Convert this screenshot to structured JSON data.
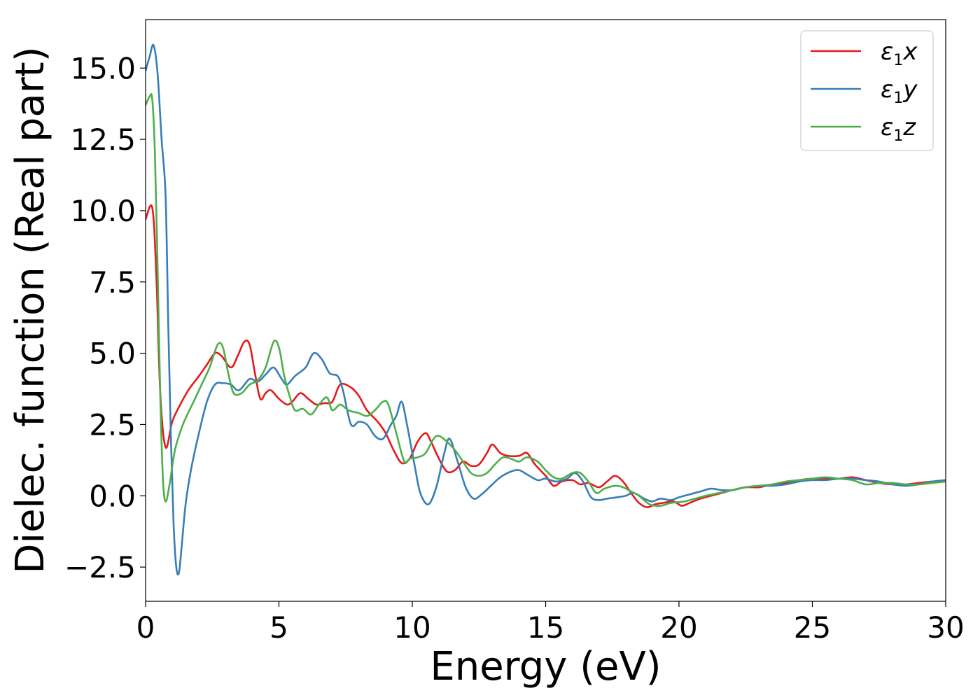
{
  "chart_data": {
    "type": "line",
    "title": "",
    "xlabel": "Energy (eV)",
    "ylabel": "Dielec. function (Real part)",
    "xlim": [
      0,
      30
    ],
    "ylim": [
      -3.7,
      16.7
    ],
    "xticks": [
      0,
      5,
      10,
      15,
      20,
      25,
      30
    ],
    "xtick_labels": [
      "0",
      "5",
      "10",
      "15",
      "20",
      "25",
      "30"
    ],
    "yticks": [
      -2.5,
      0.0,
      2.5,
      5.0,
      7.5,
      10.0,
      12.5,
      15.0
    ],
    "ytick_labels": [
      "−2.5",
      "0.0",
      "2.5",
      "5.0",
      "7.5",
      "10.0",
      "12.5",
      "15.0"
    ],
    "grid": false,
    "legend_position": "top-right",
    "series": [
      {
        "name": "ε1x",
        "legend_symbol": "ε",
        "legend_sub": "1",
        "legend_var": "x",
        "color": "#e41a1c",
        "points": [
          [
            0,
            9.7
          ],
          [
            0.25,
            10.1
          ],
          [
            0.4,
            7.8
          ],
          [
            0.55,
            3.6
          ],
          [
            0.75,
            1.7
          ],
          [
            1.0,
            2.6
          ],
          [
            1.3,
            3.2
          ],
          [
            1.6,
            3.7
          ],
          [
            2.0,
            4.2
          ],
          [
            2.3,
            4.6
          ],
          [
            2.6,
            5.0
          ],
          [
            2.85,
            4.9
          ],
          [
            3.2,
            4.5
          ],
          [
            3.45,
            4.9
          ],
          [
            3.7,
            5.4
          ],
          [
            3.9,
            5.3
          ],
          [
            4.1,
            4.3
          ],
          [
            4.3,
            3.4
          ],
          [
            4.5,
            3.6
          ],
          [
            4.7,
            3.7
          ],
          [
            5.0,
            3.4
          ],
          [
            5.3,
            3.2
          ],
          [
            5.5,
            3.3
          ],
          [
            5.8,
            3.6
          ],
          [
            6.1,
            3.4
          ],
          [
            6.4,
            3.2
          ],
          [
            6.7,
            3.25
          ],
          [
            7.0,
            3.3
          ],
          [
            7.3,
            3.9
          ],
          [
            7.7,
            3.8
          ],
          [
            8.0,
            3.5
          ],
          [
            8.3,
            3.0
          ],
          [
            8.7,
            2.6
          ],
          [
            9.0,
            2.2
          ],
          [
            9.3,
            1.6
          ],
          [
            9.6,
            1.15
          ],
          [
            9.9,
            1.3
          ],
          [
            10.2,
            1.9
          ],
          [
            10.5,
            2.2
          ],
          [
            10.7,
            1.9
          ],
          [
            11.0,
            1.3
          ],
          [
            11.3,
            0.85
          ],
          [
            11.6,
            0.9
          ],
          [
            11.9,
            1.2
          ],
          [
            12.2,
            1.05
          ],
          [
            12.5,
            1.1
          ],
          [
            12.8,
            1.5
          ],
          [
            13.0,
            1.8
          ],
          [
            13.3,
            1.5
          ],
          [
            13.6,
            1.4
          ],
          [
            14.0,
            1.4
          ],
          [
            14.3,
            1.5
          ],
          [
            14.6,
            1.1
          ],
          [
            15.0,
            0.7
          ],
          [
            15.3,
            0.35
          ],
          [
            15.6,
            0.5
          ],
          [
            16.0,
            0.55
          ],
          [
            16.3,
            0.4
          ],
          [
            16.6,
            0.45
          ],
          [
            17.0,
            0.3
          ],
          [
            17.3,
            0.5
          ],
          [
            17.6,
            0.7
          ],
          [
            17.9,
            0.5
          ],
          [
            18.2,
            0.1
          ],
          [
            18.5,
            -0.25
          ],
          [
            18.8,
            -0.4
          ],
          [
            19.1,
            -0.3
          ],
          [
            19.4,
            -0.25
          ],
          [
            19.8,
            -0.2
          ],
          [
            20.1,
            -0.35
          ],
          [
            20.4,
            -0.25
          ],
          [
            20.8,
            -0.1
          ],
          [
            21.2,
            0.0
          ],
          [
            21.6,
            0.1
          ],
          [
            22.0,
            0.2
          ],
          [
            22.5,
            0.3
          ],
          [
            23.0,
            0.3
          ],
          [
            23.5,
            0.4
          ],
          [
            24.0,
            0.45
          ],
          [
            24.5,
            0.55
          ],
          [
            25.0,
            0.6
          ],
          [
            25.5,
            0.6
          ],
          [
            26.0,
            0.6
          ],
          [
            26.5,
            0.65
          ],
          [
            27.0,
            0.55
          ],
          [
            27.5,
            0.45
          ],
          [
            28.0,
            0.4
          ],
          [
            28.5,
            0.4
          ],
          [
            29.0,
            0.45
          ],
          [
            29.5,
            0.5
          ],
          [
            30.0,
            0.5
          ]
        ]
      },
      {
        "name": "ε1y",
        "legend_symbol": "ε",
        "legend_sub": "1",
        "legend_var": "y",
        "color": "#377eb8",
        "points": [
          [
            0,
            14.9
          ],
          [
            0.15,
            15.4
          ],
          [
            0.3,
            15.8
          ],
          [
            0.45,
            14.8
          ],
          [
            0.6,
            12.5
          ],
          [
            0.75,
            10.5
          ],
          [
            0.85,
            6.0
          ],
          [
            0.95,
            2.0
          ],
          [
            1.05,
            -1.0
          ],
          [
            1.15,
            -2.5
          ],
          [
            1.25,
            -2.7
          ],
          [
            1.35,
            -1.8
          ],
          [
            1.5,
            -0.3
          ],
          [
            1.7,
            0.9
          ],
          [
            2.0,
            2.2
          ],
          [
            2.3,
            3.3
          ],
          [
            2.6,
            3.9
          ],
          [
            2.9,
            3.95
          ],
          [
            3.2,
            3.9
          ],
          [
            3.5,
            3.7
          ],
          [
            3.9,
            4.1
          ],
          [
            4.2,
            4.0
          ],
          [
            4.5,
            4.25
          ],
          [
            4.8,
            4.5
          ],
          [
            5.1,
            4.1
          ],
          [
            5.3,
            3.9
          ],
          [
            5.6,
            4.2
          ],
          [
            6.0,
            4.5
          ],
          [
            6.3,
            5.0
          ],
          [
            6.6,
            4.8
          ],
          [
            6.9,
            4.3
          ],
          [
            7.2,
            4.2
          ],
          [
            7.4,
            3.7
          ],
          [
            7.7,
            2.5
          ],
          [
            8.0,
            2.6
          ],
          [
            8.3,
            2.5
          ],
          [
            8.6,
            2.1
          ],
          [
            8.9,
            2.0
          ],
          [
            9.2,
            2.5
          ],
          [
            9.4,
            2.8
          ],
          [
            9.6,
            3.3
          ],
          [
            9.8,
            2.5
          ],
          [
            10.1,
            1.0
          ],
          [
            10.3,
            0.1
          ],
          [
            10.6,
            -0.3
          ],
          [
            10.9,
            0.3
          ],
          [
            11.2,
            1.5
          ],
          [
            11.4,
            2.0
          ],
          [
            11.7,
            1.2
          ],
          [
            12.0,
            0.3
          ],
          [
            12.3,
            -0.1
          ],
          [
            12.6,
            0.05
          ],
          [
            13.0,
            0.4
          ],
          [
            13.3,
            0.65
          ],
          [
            13.7,
            0.85
          ],
          [
            14.0,
            0.9
          ],
          [
            14.3,
            0.75
          ],
          [
            14.7,
            0.55
          ],
          [
            15.0,
            0.6
          ],
          [
            15.4,
            0.5
          ],
          [
            15.8,
            0.6
          ],
          [
            16.1,
            0.8
          ],
          [
            16.4,
            0.5
          ],
          [
            16.7,
            -0.05
          ],
          [
            17.0,
            -0.15
          ],
          [
            17.3,
            -0.1
          ],
          [
            17.7,
            -0.05
          ],
          [
            18.0,
            0.0
          ],
          [
            18.3,
            0.1
          ],
          [
            18.7,
            -0.1
          ],
          [
            19.0,
            -0.2
          ],
          [
            19.3,
            -0.1
          ],
          [
            19.7,
            -0.15
          ],
          [
            20.0,
            -0.05
          ],
          [
            20.4,
            0.05
          ],
          [
            20.8,
            0.15
          ],
          [
            21.2,
            0.25
          ],
          [
            21.6,
            0.2
          ],
          [
            22.0,
            0.2
          ],
          [
            22.5,
            0.3
          ],
          [
            23.0,
            0.35
          ],
          [
            23.5,
            0.35
          ],
          [
            24.0,
            0.4
          ],
          [
            24.5,
            0.5
          ],
          [
            25.0,
            0.55
          ],
          [
            25.5,
            0.55
          ],
          [
            26.0,
            0.6
          ],
          [
            26.5,
            0.6
          ],
          [
            27.0,
            0.55
          ],
          [
            27.5,
            0.5
          ],
          [
            28.0,
            0.4
          ],
          [
            28.5,
            0.35
          ],
          [
            29.0,
            0.4
          ],
          [
            29.5,
            0.5
          ],
          [
            30.0,
            0.55
          ]
        ]
      },
      {
        "name": "ε1z",
        "legend_symbol": "ε",
        "legend_sub": "1",
        "legend_var": "z",
        "color": "#4daf4a",
        "points": [
          [
            0,
            13.7
          ],
          [
            0.15,
            14.0
          ],
          [
            0.25,
            13.9
          ],
          [
            0.35,
            12.0
          ],
          [
            0.45,
            8.0
          ],
          [
            0.55,
            3.5
          ],
          [
            0.65,
            0.6
          ],
          [
            0.75,
            -0.2
          ],
          [
            0.9,
            0.4
          ],
          [
            1.1,
            1.6
          ],
          [
            1.4,
            2.5
          ],
          [
            1.8,
            3.3
          ],
          [
            2.1,
            3.9
          ],
          [
            2.4,
            4.5
          ],
          [
            2.7,
            5.3
          ],
          [
            2.9,
            5.2
          ],
          [
            3.1,
            4.3
          ],
          [
            3.3,
            3.6
          ],
          [
            3.6,
            3.6
          ],
          [
            3.9,
            3.9
          ],
          [
            4.2,
            4.05
          ],
          [
            4.5,
            4.5
          ],
          [
            4.8,
            5.4
          ],
          [
            5.0,
            5.2
          ],
          [
            5.2,
            4.2
          ],
          [
            5.4,
            3.5
          ],
          [
            5.6,
            3.0
          ],
          [
            5.9,
            3.05
          ],
          [
            6.2,
            2.85
          ],
          [
            6.5,
            3.2
          ],
          [
            6.8,
            3.45
          ],
          [
            7.0,
            3.0
          ],
          [
            7.3,
            3.2
          ],
          [
            7.6,
            3.0
          ],
          [
            8.0,
            2.9
          ],
          [
            8.3,
            2.8
          ],
          [
            8.6,
            3.0
          ],
          [
            8.9,
            3.3
          ],
          [
            9.1,
            3.2
          ],
          [
            9.4,
            2.2
          ],
          [
            9.7,
            1.2
          ],
          [
            9.9,
            1.3
          ],
          [
            10.2,
            1.35
          ],
          [
            10.5,
            1.5
          ],
          [
            10.8,
            2.0
          ],
          [
            11.0,
            2.1
          ],
          [
            11.3,
            1.9
          ],
          [
            11.6,
            1.6
          ],
          [
            11.9,
            1.2
          ],
          [
            12.2,
            0.8
          ],
          [
            12.5,
            0.7
          ],
          [
            12.8,
            0.8
          ],
          [
            13.1,
            1.1
          ],
          [
            13.4,
            1.35
          ],
          [
            13.7,
            1.3
          ],
          [
            14.0,
            1.2
          ],
          [
            14.3,
            1.35
          ],
          [
            14.7,
            1.2
          ],
          [
            15.0,
            0.9
          ],
          [
            15.3,
            0.65
          ],
          [
            15.6,
            0.6
          ],
          [
            16.0,
            0.8
          ],
          [
            16.3,
            0.8
          ],
          [
            16.6,
            0.5
          ],
          [
            16.9,
            0.1
          ],
          [
            17.2,
            0.25
          ],
          [
            17.6,
            0.35
          ],
          [
            17.9,
            0.3
          ],
          [
            18.2,
            0.15
          ],
          [
            18.5,
            0.0
          ],
          [
            18.9,
            -0.3
          ],
          [
            19.3,
            -0.35
          ],
          [
            19.7,
            -0.25
          ],
          [
            20.2,
            -0.2
          ],
          [
            20.6,
            -0.1
          ],
          [
            21.0,
            0.0
          ],
          [
            21.5,
            0.1
          ],
          [
            22.0,
            0.2
          ],
          [
            22.5,
            0.3
          ],
          [
            23.0,
            0.35
          ],
          [
            23.5,
            0.4
          ],
          [
            24.0,
            0.5
          ],
          [
            24.5,
            0.55
          ],
          [
            25.0,
            0.6
          ],
          [
            25.5,
            0.65
          ],
          [
            26.0,
            0.6
          ],
          [
            26.5,
            0.55
          ],
          [
            27.0,
            0.4
          ],
          [
            27.5,
            0.45
          ],
          [
            28.0,
            0.45
          ],
          [
            28.5,
            0.4
          ],
          [
            29.0,
            0.4
          ],
          [
            29.5,
            0.45
          ],
          [
            30.0,
            0.5
          ]
        ]
      }
    ]
  }
}
